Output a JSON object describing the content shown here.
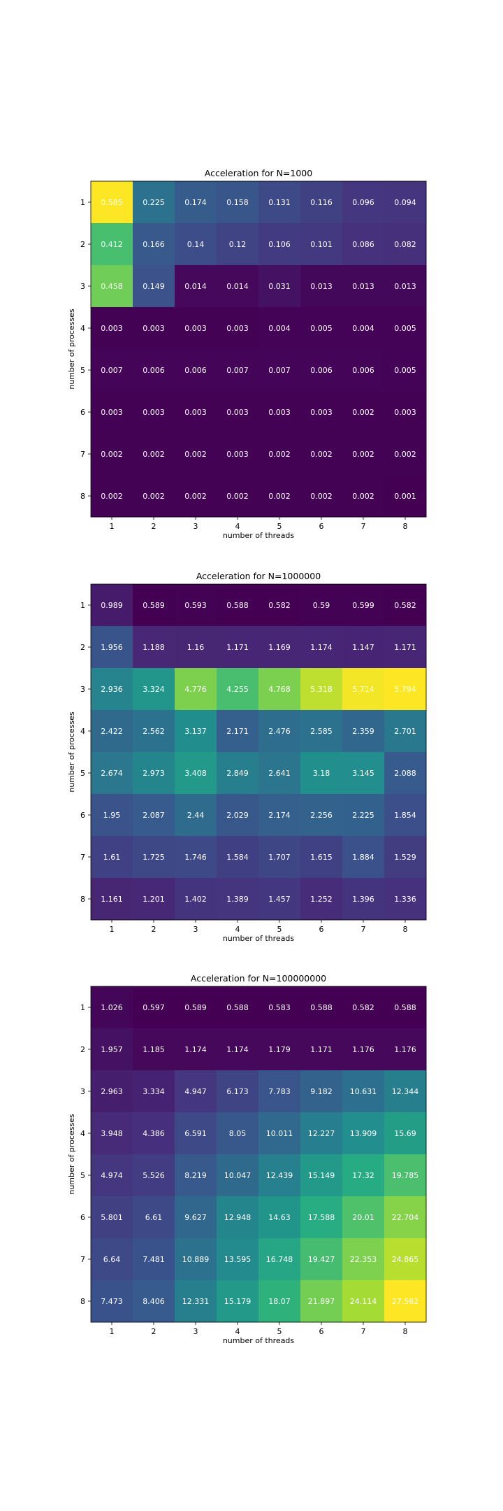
{
  "chart_data": [
    {
      "type": "heatmap",
      "title": "Acceleration for N=1000",
      "xlabel": "number of threads",
      "ylabel": "number of processes",
      "x_categories": [
        "1",
        "2",
        "3",
        "4",
        "5",
        "6",
        "7",
        "8"
      ],
      "y_categories": [
        "1",
        "2",
        "3",
        "4",
        "5",
        "6",
        "7",
        "8"
      ],
      "colormap": "viridis",
      "values": [
        [
          0.585,
          0.225,
          0.174,
          0.158,
          0.131,
          0.116,
          0.096,
          0.094
        ],
        [
          0.412,
          0.166,
          0.14,
          0.12,
          0.106,
          0.101,
          0.086,
          0.082
        ],
        [
          0.458,
          0.149,
          0.014,
          0.014,
          0.031,
          0.013,
          0.013,
          0.013
        ],
        [
          0.003,
          0.003,
          0.003,
          0.003,
          0.004,
          0.005,
          0.004,
          0.005
        ],
        [
          0.007,
          0.006,
          0.006,
          0.007,
          0.007,
          0.006,
          0.006,
          0.005
        ],
        [
          0.003,
          0.003,
          0.003,
          0.003,
          0.003,
          0.003,
          0.002,
          0.003
        ],
        [
          0.002,
          0.002,
          0.002,
          0.003,
          0.002,
          0.002,
          0.002,
          0.002
        ],
        [
          0.002,
          0.002,
          0.002,
          0.002,
          0.002,
          0.002,
          0.002,
          0.001
        ]
      ]
    },
    {
      "type": "heatmap",
      "title": "Acceleration for N=1000000",
      "xlabel": "number of threads",
      "ylabel": "number of processes",
      "x_categories": [
        "1",
        "2",
        "3",
        "4",
        "5",
        "6",
        "7",
        "8"
      ],
      "y_categories": [
        "1",
        "2",
        "3",
        "4",
        "5",
        "6",
        "7",
        "8"
      ],
      "colormap": "viridis",
      "values": [
        [
          0.989,
          0.589,
          0.593,
          0.588,
          0.582,
          0.59,
          0.599,
          0.582
        ],
        [
          1.956,
          1.188,
          1.16,
          1.171,
          1.169,
          1.174,
          1.147,
          1.171
        ],
        [
          2.936,
          3.324,
          4.776,
          4.255,
          4.768,
          5.318,
          5.714,
          5.794
        ],
        [
          2.422,
          2.562,
          3.137,
          2.171,
          2.476,
          2.585,
          2.359,
          2.701
        ],
        [
          2.674,
          2.973,
          3.408,
          2.849,
          2.641,
          3.18,
          3.145,
          2.088
        ],
        [
          1.95,
          2.087,
          2.44,
          2.029,
          2.174,
          2.256,
          2.225,
          1.854
        ],
        [
          1.61,
          1.725,
          1.746,
          1.584,
          1.707,
          1.615,
          1.884,
          1.529
        ],
        [
          1.161,
          1.201,
          1.402,
          1.389,
          1.457,
          1.252,
          1.396,
          1.336
        ]
      ]
    },
    {
      "type": "heatmap",
      "title": "Acceleration for N=100000000",
      "xlabel": "number of threads",
      "ylabel": "number of processes",
      "x_categories": [
        "1",
        "2",
        "3",
        "4",
        "5",
        "6",
        "7",
        "8"
      ],
      "y_categories": [
        "1",
        "2",
        "3",
        "4",
        "5",
        "6",
        "7",
        "8"
      ],
      "colormap": "viridis",
      "values": [
        [
          1.026,
          0.597,
          0.589,
          0.588,
          0.583,
          0.588,
          0.582,
          0.588
        ],
        [
          1.957,
          1.185,
          1.174,
          1.174,
          1.179,
          1.171,
          1.176,
          1.176
        ],
        [
          2.963,
          3.334,
          4.947,
          6.173,
          7.783,
          9.182,
          10.631,
          12.344
        ],
        [
          3.948,
          4.386,
          6.591,
          8.05,
          10.011,
          12.227,
          13.909,
          15.69
        ],
        [
          4.974,
          5.526,
          8.219,
          10.047,
          12.439,
          15.149,
          17.32,
          19.785
        ],
        [
          5.801,
          6.61,
          9.627,
          12.948,
          14.63,
          17.588,
          20.01,
          22.704
        ],
        [
          6.64,
          7.481,
          10.889,
          13.595,
          16.748,
          19.427,
          22.353,
          24.865
        ],
        [
          7.473,
          8.406,
          12.331,
          15.179,
          18.07,
          21.897,
          24.114,
          27.562
        ]
      ]
    }
  ]
}
